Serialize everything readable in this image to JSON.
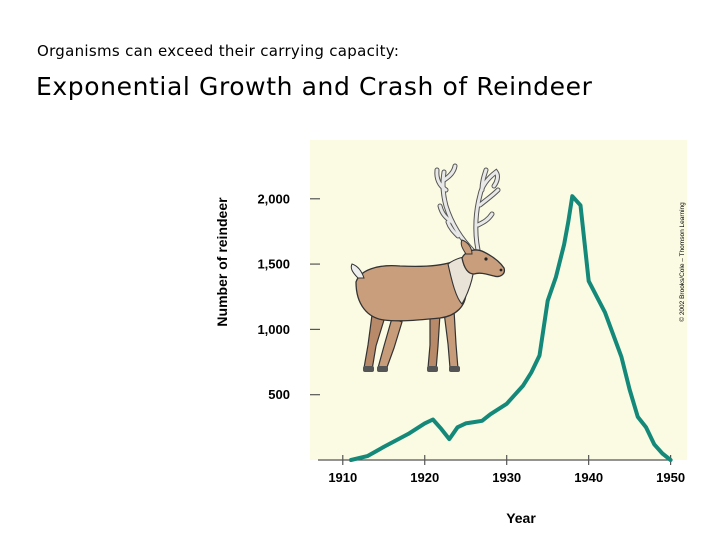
{
  "slide": {
    "subtitle": "Organisms can exceed their carrying capacity:",
    "title": "Exponential Growth and Crash of Reindeer"
  },
  "chart_data": {
    "type": "line",
    "title": "",
    "xlabel": "Year",
    "ylabel": "Number of reindeer",
    "xlim": [
      1906,
      1952
    ],
    "ylim": [
      0,
      2450
    ],
    "x_ticks": [
      1910,
      1920,
      1930,
      1940,
      1950
    ],
    "x_tick_labels": [
      "1910",
      "1920",
      "1930",
      "1940",
      "1950"
    ],
    "y_ticks": [
      500,
      1000,
      1500,
      2000
    ],
    "y_tick_labels": [
      "500",
      "1,000",
      "1,500",
      "2,000"
    ],
    "grid": false,
    "colors": {
      "line": "#14897a",
      "plot_background": "#fbfbe4",
      "axis": "#555555"
    },
    "series": [
      {
        "x": [
          1911,
          1913,
          1915,
          1918,
          1920,
          1921,
          1922,
          1923,
          1924,
          1925,
          1926,
          1927,
          1928,
          1929,
          1930,
          1931,
          1932,
          1933,
          1934,
          1935,
          1936,
          1937,
          1937.5,
          1938,
          1939,
          1940,
          1942,
          1944,
          1945,
          1946,
          1947,
          1948,
          1949,
          1950
        ],
        "y": [
          0,
          30,
          100,
          200,
          280,
          310,
          240,
          160,
          250,
          280,
          290,
          300,
          350,
          390,
          430,
          500,
          570,
          670,
          800,
          1220,
          1400,
          1650,
          1820,
          2020,
          1950,
          1370,
          1130,
          790,
          540,
          330,
          250,
          120,
          50,
          0
        ]
      }
    ],
    "credit": "© 2002 Brooks/Cole – Thomson Learning"
  }
}
